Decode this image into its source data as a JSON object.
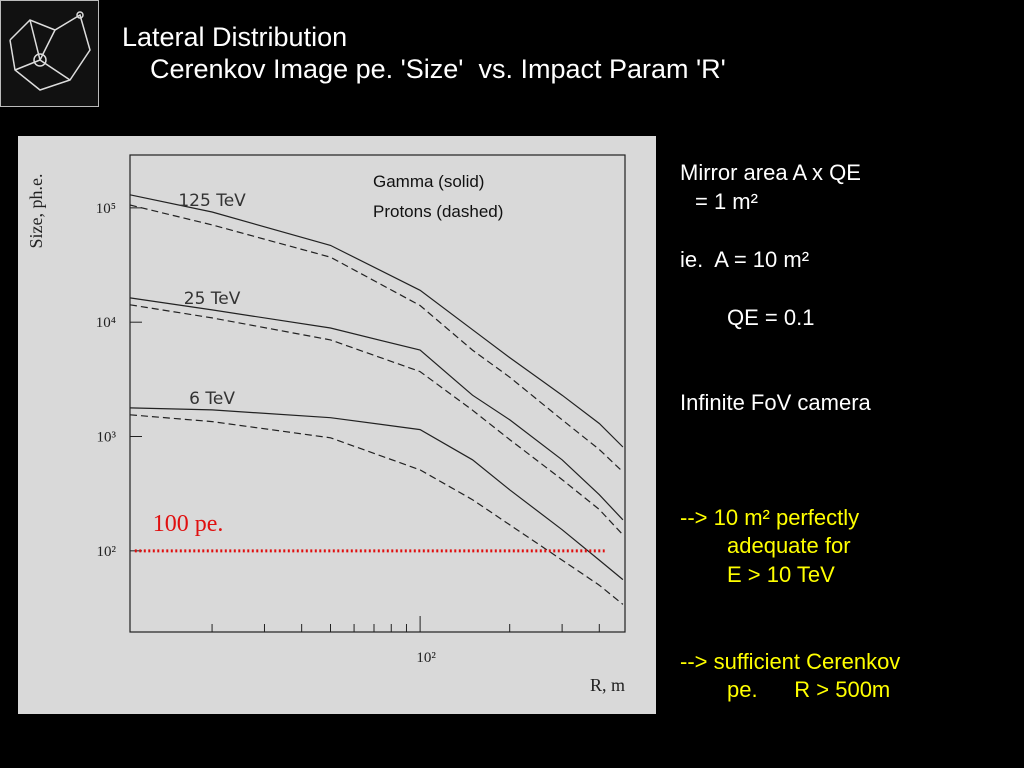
{
  "slide": {
    "title": "Lateral Distribution",
    "subtitle": "Cerenkov Image pe. 'Size'  vs. Impact Param 'R'",
    "notes": [
      {
        "text": "Mirror area A x QE",
        "color": "white",
        "indent": 0
      },
      {
        "text": "= 1 m²",
        "color": "white",
        "indent": 1
      },
      {
        "text": "ie.  A = 10 m²",
        "color": "white",
        "indent": 0
      },
      {
        "text": "QE = 0.1",
        "color": "white",
        "indent": 2
      },
      {
        "text": "Infinite FoV camera",
        "color": "white",
        "indent": 0
      },
      {
        "text": "--> 10 m² perfectly",
        "color": "yellow",
        "indent": 0
      },
      {
        "text": "adequate for",
        "color": "yellow",
        "indent": 2
      },
      {
        "text": "E > 10 TeV",
        "color": "yellow",
        "indent": 2
      },
      {
        "text": "--> sufficient Cerenkov",
        "color": "yellow",
        "indent": 0
      },
      {
        "text": "pe.      R > 500m",
        "color": "yellow",
        "indent": 2
      }
    ]
  },
  "chart_data": {
    "type": "line",
    "xlabel": "R, m",
    "ylabel": "Size, ph.e.",
    "annotations": [
      "Gamma  (solid)",
      "Protons (dashed)"
    ],
    "log_x": true,
    "log_y": true,
    "xlim": [
      10.6,
      488
    ],
    "ylim": [
      19.5,
      290000
    ],
    "xticks": [
      {
        "value": 100,
        "label": "10²"
      }
    ],
    "xminorticks": [
      20,
      30,
      40,
      50,
      60,
      70,
      80,
      90,
      200,
      300,
      400
    ],
    "yticks": [
      {
        "value": 100,
        "label": "10²"
      },
      {
        "value": 1000,
        "label": "10³"
      },
      {
        "value": 10000,
        "label": "10⁴"
      },
      {
        "value": 100000,
        "label": "10⁵"
      }
    ],
    "x": [
      10.6,
      20,
      50,
      100,
      150,
      200,
      300,
      400,
      480
    ],
    "series": [
      {
        "label": "125 TeV",
        "dashed": false,
        "color": "#222",
        "values": [
          130000,
          92000,
          47000,
          19000,
          8600,
          4900,
          2300,
          1300,
          810
        ]
      },
      {
        "dashed": true,
        "color": "#222",
        "values": [
          106000,
          71000,
          37000,
          14000,
          5700,
          3300,
          1400,
          770,
          490
        ]
      },
      {
        "label": "25 TeV",
        "dashed": false,
        "color": "#222",
        "values": [
          16300,
          12800,
          8900,
          5700,
          2300,
          1400,
          625,
          310,
          187
        ]
      },
      {
        "dashed": true,
        "color": "#222",
        "values": [
          14200,
          10900,
          7000,
          3700,
          1700,
          940,
          420,
          230,
          138
        ]
      },
      {
        "label": "6 TeV",
        "dashed": false,
        "color": "#222",
        "values": [
          1780,
          1710,
          1460,
          1150,
          625,
          342,
          153,
          83,
          56
        ]
      },
      {
        "dashed": true,
        "color": "#222",
        "values": [
          1550,
          1350,
          975,
          510,
          280,
          169,
          83,
          50,
          34
        ]
      }
    ],
    "threshold": {
      "label": "100 pe.",
      "y": 100,
      "x": [
        11,
        417
      ],
      "color": "#e01010"
    }
  }
}
